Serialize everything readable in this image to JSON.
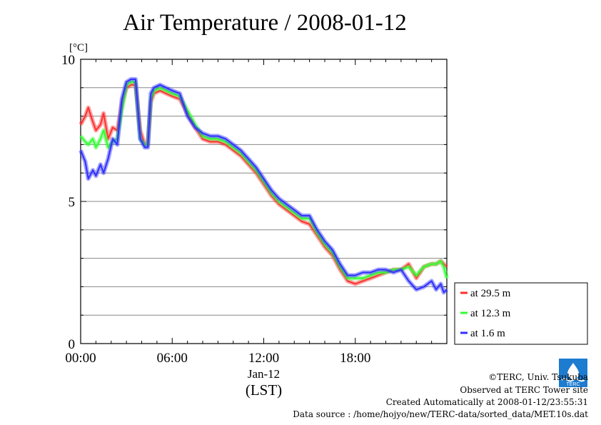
{
  "chart_data": {
    "type": "line",
    "title": "Air Temperature / 2008-01-12",
    "ylabel": "[°C]",
    "xlabel": "(LST)",
    "date_label": "Jan-12",
    "xlim": [
      0,
      24
    ],
    "ylim": [
      0,
      10
    ],
    "x_ticks": [
      {
        "value": 0,
        "label": "00:00"
      },
      {
        "value": 6,
        "label": "06:00"
      },
      {
        "value": 12,
        "label": "12:00"
      },
      {
        "value": 18,
        "label": "18:00"
      }
    ],
    "y_ticks": [
      {
        "value": 0,
        "label": "0"
      },
      {
        "value": 5,
        "label": "5"
      },
      {
        "value": 10,
        "label": "10"
      }
    ],
    "grid": true,
    "legend_position": "right",
    "series": [
      {
        "name": "at 29.5 m",
        "color": "#ff3030",
        "x": [
          0,
          0.3,
          0.5,
          0.8,
          1.0,
          1.3,
          1.5,
          1.8,
          2.1,
          2.4,
          2.7,
          3.0,
          3.3,
          3.6,
          3.9,
          4.2,
          4.4,
          4.6,
          4.8,
          5.2,
          5.6,
          6.0,
          6.5,
          7.0,
          7.5,
          8.0,
          8.5,
          9.0,
          9.5,
          10.0,
          10.5,
          11.0,
          11.5,
          12.0,
          12.5,
          13.0,
          13.5,
          14.0,
          14.5,
          15.0,
          15.5,
          16.0,
          16.5,
          17.0,
          17.5,
          18.0,
          18.5,
          19.0,
          19.5,
          20.0,
          20.5,
          21.0,
          21.5,
          22.0,
          22.5,
          23.0,
          23.3,
          23.6,
          23.8,
          24.0
        ],
        "y": [
          7.7,
          8.0,
          8.3,
          7.8,
          7.5,
          7.7,
          8.1,
          7.2,
          7.6,
          7.5,
          8.4,
          9.0,
          9.1,
          9.1,
          7.5,
          7.0,
          7.0,
          8.5,
          8.8,
          8.9,
          8.8,
          8.7,
          8.6,
          8.1,
          7.6,
          7.2,
          7.1,
          7.1,
          7.0,
          6.8,
          6.6,
          6.3,
          6.0,
          5.6,
          5.2,
          4.9,
          4.7,
          4.5,
          4.3,
          4.2,
          3.8,
          3.4,
          3.1,
          2.6,
          2.2,
          2.1,
          2.2,
          2.3,
          2.4,
          2.5,
          2.6,
          2.6,
          2.8,
          2.3,
          2.7,
          2.8,
          2.8,
          2.9,
          2.8,
          2.7
        ]
      },
      {
        "name": "at 12.3 m",
        "color": "#30ff30",
        "x": [
          0,
          0.3,
          0.5,
          0.8,
          1.0,
          1.3,
          1.5,
          1.8,
          2.1,
          2.4,
          2.7,
          3.0,
          3.3,
          3.6,
          3.9,
          4.2,
          4.4,
          4.6,
          4.8,
          5.2,
          5.6,
          6.0,
          6.5,
          7.0,
          7.5,
          8.0,
          8.5,
          9.0,
          9.5,
          10.0,
          10.5,
          11.0,
          11.5,
          12.0,
          12.5,
          13.0,
          13.5,
          14.0,
          14.5,
          15.0,
          15.5,
          16.0,
          16.5,
          17.0,
          17.5,
          18.0,
          18.5,
          19.0,
          19.5,
          20.0,
          20.5,
          21.0,
          21.5,
          22.0,
          22.5,
          23.0,
          23.3,
          23.6,
          23.8,
          24.0
        ],
        "y": [
          7.3,
          7.1,
          7.0,
          7.2,
          6.9,
          7.2,
          7.5,
          6.9,
          7.1,
          7.2,
          8.2,
          9.1,
          9.2,
          9.2,
          7.2,
          7.0,
          7.0,
          8.6,
          8.9,
          9.0,
          8.9,
          8.8,
          8.7,
          8.2,
          7.7,
          7.3,
          7.2,
          7.2,
          7.1,
          6.9,
          6.7,
          6.4,
          6.1,
          5.7,
          5.3,
          5.0,
          4.8,
          4.6,
          4.4,
          4.4,
          3.9,
          3.5,
          3.2,
          2.7,
          2.3,
          2.3,
          2.3,
          2.4,
          2.5,
          2.5,
          2.6,
          2.6,
          2.7,
          2.4,
          2.7,
          2.8,
          2.8,
          2.9,
          2.7,
          2.3
        ]
      },
      {
        "name": "at 1.6 m",
        "color": "#3030ff",
        "x": [
          0,
          0.3,
          0.5,
          0.8,
          1.0,
          1.3,
          1.5,
          1.8,
          2.1,
          2.4,
          2.7,
          3.0,
          3.3,
          3.6,
          3.9,
          4.2,
          4.4,
          4.6,
          4.8,
          5.2,
          5.6,
          6.0,
          6.5,
          7.0,
          7.5,
          8.0,
          8.5,
          9.0,
          9.5,
          10.0,
          10.5,
          11.0,
          11.5,
          12.0,
          12.5,
          13.0,
          13.5,
          14.0,
          14.5,
          15.0,
          15.5,
          16.0,
          16.5,
          17.0,
          17.5,
          18.0,
          18.5,
          19.0,
          19.5,
          20.0,
          20.5,
          21.0,
          21.5,
          22.0,
          22.5,
          23.0,
          23.3,
          23.6,
          23.8,
          24.0
        ],
        "y": [
          6.8,
          6.4,
          5.8,
          6.1,
          5.9,
          6.3,
          6.0,
          6.5,
          7.2,
          7.0,
          8.6,
          9.2,
          9.3,
          9.3,
          7.2,
          6.9,
          6.9,
          8.8,
          9.0,
          9.1,
          9.0,
          8.9,
          8.8,
          8.0,
          7.6,
          7.4,
          7.3,
          7.3,
          7.2,
          7.0,
          6.8,
          6.5,
          6.2,
          5.8,
          5.4,
          5.1,
          4.9,
          4.7,
          4.5,
          4.5,
          4.0,
          3.6,
          3.3,
          2.8,
          2.4,
          2.4,
          2.5,
          2.5,
          2.6,
          2.6,
          2.5,
          2.6,
          2.2,
          1.9,
          2.0,
          2.2,
          1.9,
          2.1,
          1.8,
          1.9
        ]
      }
    ]
  },
  "footer": {
    "copyright": "©TERC, Univ. Tsukuba",
    "observed": "Observed at TERC Tower site",
    "created": "Created Automatically at 2008-01-12/23:55:31",
    "source": "Data source : /home/hojyo/new/TERC-data/sorted_data/MET.10s.dat",
    "logo_text": "TERC"
  }
}
